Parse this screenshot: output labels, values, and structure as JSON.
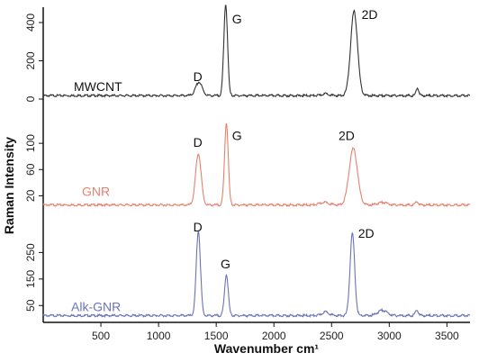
{
  "chart_data": {
    "type": "line",
    "xlabel": "Wavenumber cm¹",
    "ylabel": "Raman Intensity",
    "xlim": [
      0,
      3700
    ],
    "x_ticks": [
      500,
      1000,
      1500,
      2000,
      2500,
      3000,
      3500
    ],
    "grid": false,
    "panels": [
      {
        "name": "MWCNT",
        "color": "#333333",
        "ylim": [
          0,
          480
        ],
        "y_ticks": [
          0,
          200,
          400
        ],
        "peaks": [
          {
            "x": 1350,
            "y": 70,
            "width": 28
          },
          {
            "x": 1582,
            "y": 480,
            "width": 16
          },
          {
            "x": 2450,
            "y": 10,
            "width": 30
          },
          {
            "x": 2695,
            "y": 440,
            "width": 30
          },
          {
            "x": 3245,
            "y": 40,
            "width": 12
          }
        ],
        "baseline": 18,
        "peak_labels": [
          {
            "text": "D",
            "x": 1340,
            "y": 93
          },
          {
            "text": "G",
            "x": 1680,
            "y": 395
          },
          {
            "text": "2D",
            "x": 2830,
            "y": 420
          }
        ]
      },
      {
        "name": "GNR",
        "color": "#e8806e",
        "ylim": [
          0,
          140
        ],
        "y_ticks": [
          20,
          60,
          100
        ],
        "peaks": [
          {
            "x": 1345,
            "y": 78,
            "width": 24
          },
          {
            "x": 1588,
            "y": 125,
            "width": 16
          },
          {
            "x": 2440,
            "y": 4,
            "width": 40
          },
          {
            "x": 2688,
            "y": 86,
            "width": 36
          },
          {
            "x": 2940,
            "y": 4,
            "width": 40
          },
          {
            "x": 3240,
            "y": 5,
            "width": 14
          }
        ],
        "baseline": 6,
        "peak_labels": [
          {
            "text": "D",
            "x": 1340,
            "y": 95
          },
          {
            "text": "G",
            "x": 1680,
            "y": 105
          },
          {
            "text": "2D",
            "x": 2630,
            "y": 105
          }
        ]
      },
      {
        "name": "Alk-GNR",
        "color": "#6b73b8",
        "ylim": [
          0,
          360
        ],
        "y_ticks": [
          50,
          150,
          250
        ],
        "peaks": [
          {
            "x": 1345,
            "y": 320,
            "width": 18
          },
          {
            "x": 1588,
            "y": 155,
            "width": 16
          },
          {
            "x": 2450,
            "y": 14,
            "width": 30
          },
          {
            "x": 2680,
            "y": 310,
            "width": 20
          },
          {
            "x": 2940,
            "y": 20,
            "width": 40
          },
          {
            "x": 3240,
            "y": 20,
            "width": 14
          }
        ],
        "baseline": 12,
        "peak_labels": [
          {
            "text": "D",
            "x": 1340,
            "y": 330
          },
          {
            "text": "G",
            "x": 1580,
            "y": 190
          },
          {
            "text": "2D",
            "x": 2800,
            "y": 305
          }
        ]
      }
    ]
  }
}
